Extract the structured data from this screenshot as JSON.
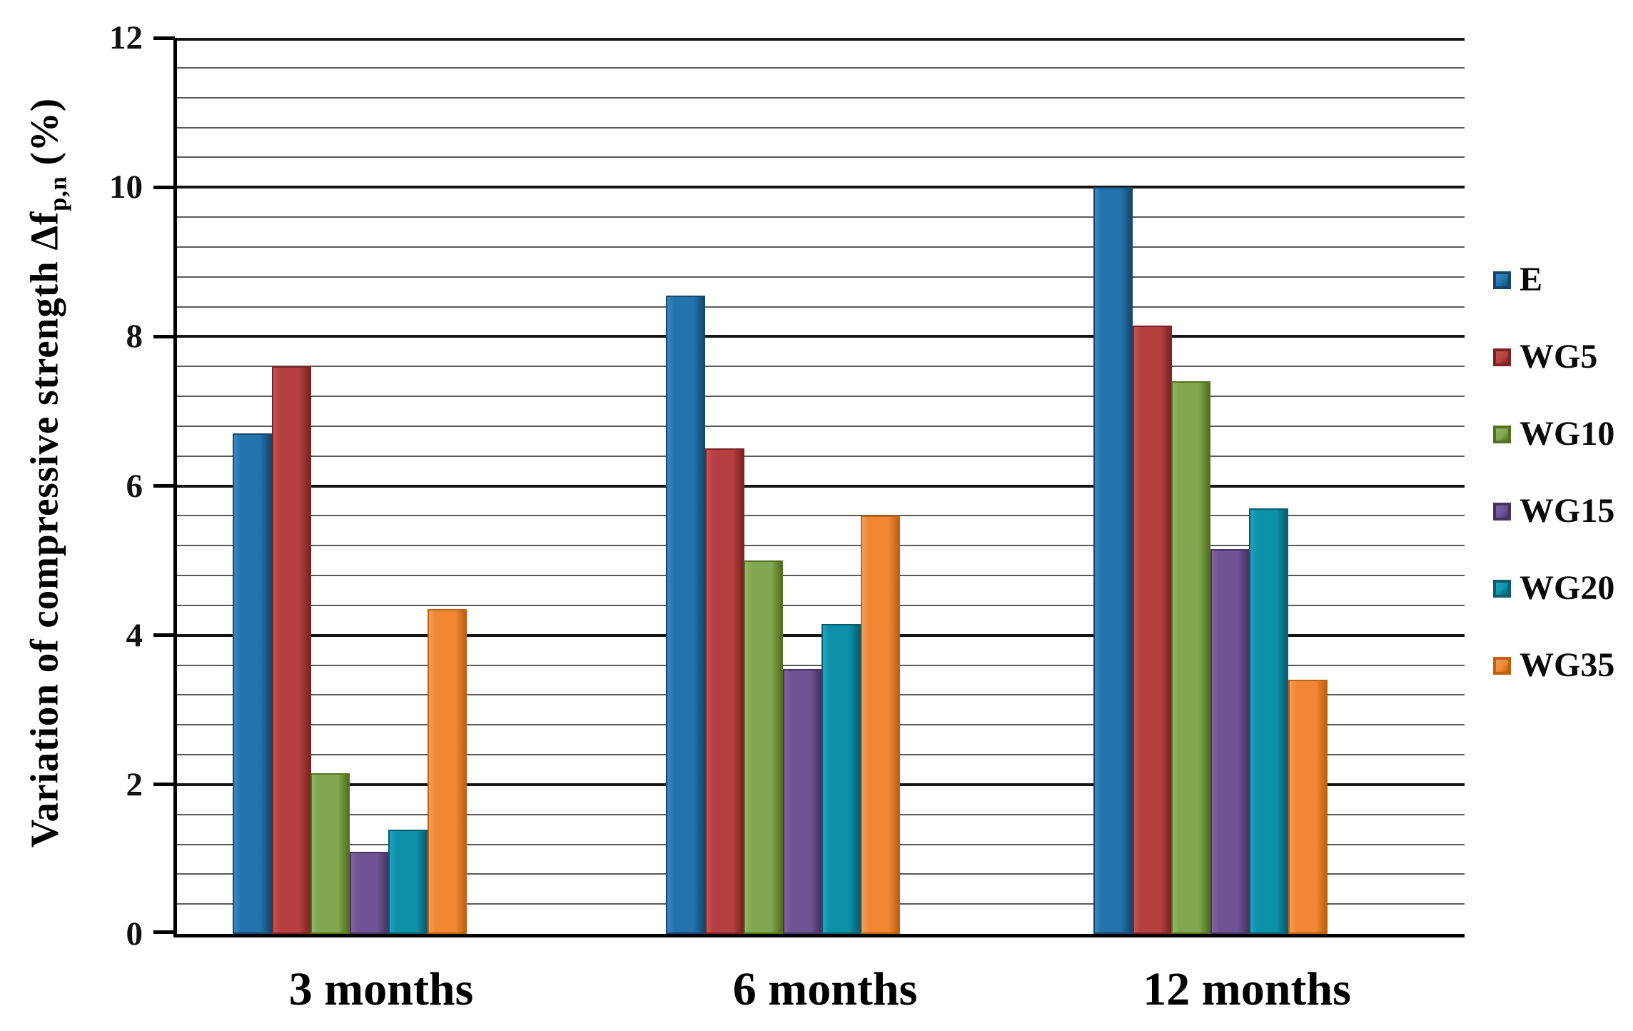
{
  "y_axis": {
    "title_prefix": "Variation of compressive strength Δf",
    "title_sub": "p,n",
    "title_suffix": " (%)"
  },
  "chart_data": {
    "type": "bar",
    "title": "",
    "xlabel": "",
    "ylabel": "Variation of compressive strength Δf p,n (%)",
    "categories": [
      "3 months",
      "6 months",
      "12 months"
    ],
    "series": [
      {
        "name": "E",
        "values": [
          6.7,
          8.55,
          10.0
        ],
        "color": "#2273AE",
        "light": "#3C88BE",
        "dark": "#16466E"
      },
      {
        "name": "WG5",
        "values": [
          7.6,
          6.5,
          8.15
        ],
        "color": "#B64040",
        "light": "#C35353",
        "dark": "#7C2323"
      },
      {
        "name": "WG10",
        "values": [
          2.15,
          5.0,
          7.4
        ],
        "color": "#81A750",
        "light": "#92B663",
        "dark": "#53711F"
      },
      {
        "name": "WG15",
        "values": [
          1.1,
          3.55,
          5.15
        ],
        "color": "#6F5394",
        "light": "#7F649F",
        "dark": "#483263"
      },
      {
        "name": "WG20",
        "values": [
          1.4,
          4.15,
          5.7
        ],
        "color": "#0D91AB",
        "light": "#25A2BA",
        "dark": "#085D6E"
      },
      {
        "name": "WG35",
        "values": [
          4.35,
          5.6,
          3.4
        ],
        "color": "#F18735",
        "light": "#F59D58",
        "dark": "#C06110"
      }
    ],
    "ylim": [
      0,
      12
    ],
    "yticks": [
      0,
      2,
      4,
      6,
      8,
      10,
      12
    ],
    "major_unit": 2,
    "minor_unit": 0.4,
    "grid": "horizontal major+minor",
    "legend_position": "right"
  }
}
